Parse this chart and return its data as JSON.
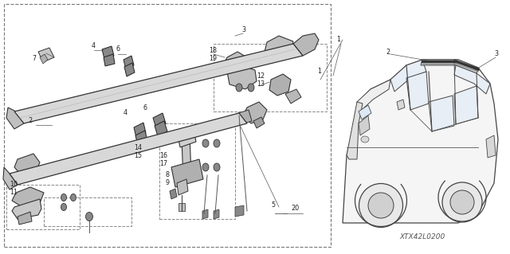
{
  "bg_color": "#ffffff",
  "line_color": "#333333",
  "diagram_code": "XTX42L0200",
  "fig_width": 6.4,
  "fig_height": 3.19,
  "dpi": 100
}
